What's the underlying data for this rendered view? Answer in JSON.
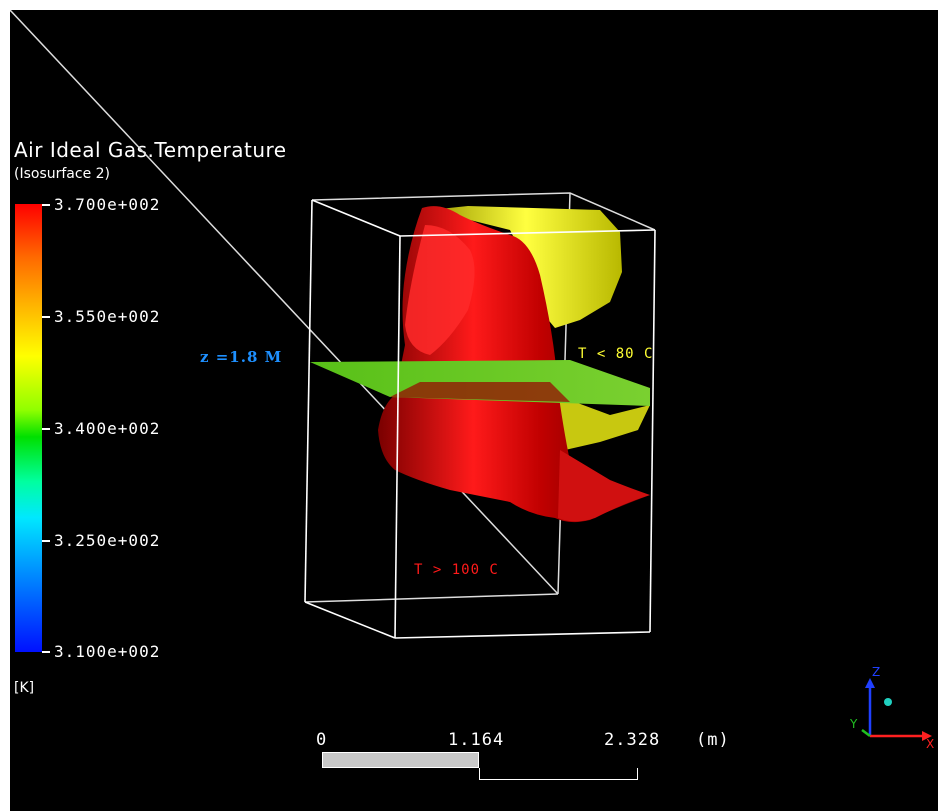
{
  "legend": {
    "title": "Air Ideal Gas.Temperature",
    "subtitle": "(Isosurface 2)",
    "ticks": [
      "3.700e+002",
      "3.550e+002",
      "3.400e+002",
      "3.250e+002",
      "3.100e+002"
    ],
    "units": "[K]",
    "range": [
      310,
      370
    ]
  },
  "annotations": {
    "plane": "z =1.8 M",
    "cold": "T < 80 C",
    "hot": "T > 100 C"
  },
  "scale_bar": {
    "labels": [
      "0",
      "1.164",
      "2.328"
    ],
    "unit": "(m)"
  },
  "axis_triad": {
    "z": "Z",
    "y": "Y",
    "x": "X"
  },
  "colors": {
    "hot_surface": "#e01010",
    "cold_surface": "#f0f020",
    "plane": "#5cc820",
    "background": "#000000"
  }
}
